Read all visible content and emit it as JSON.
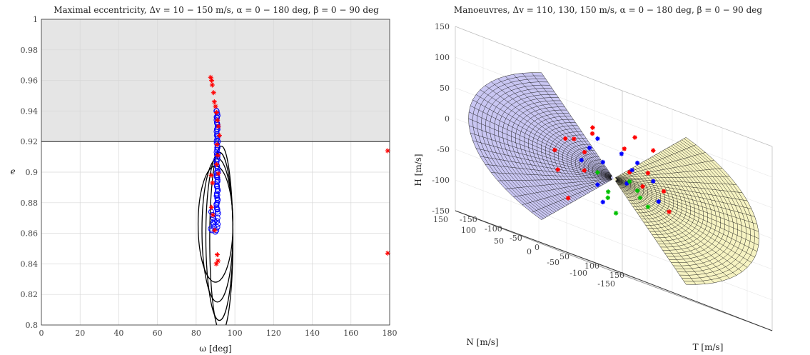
{
  "chart_data": [
    {
      "type": "scatter",
      "title": "Maximal eccentricity, Δv = 10 − 150 m/s, α = 0 − 180 deg, β = 0 − 90 deg",
      "xlabel": "ω [deg]",
      "ylabel": "e",
      "xlim": [
        0,
        180
      ],
      "ylim": [
        0.8,
        1.0
      ],
      "x_ticks": [
        "0",
        "20",
        "40",
        "60",
        "80",
        "100",
        "120",
        "140",
        "160",
        "180"
      ],
      "y_ticks": [
        "0.8",
        "0.82",
        "0.84",
        "0.86",
        "0.88",
        "0.9",
        "0.92",
        "0.94",
        "0.96",
        "0.98",
        "1"
      ],
      "grid": true,
      "shaded_region": {
        "y_from": 0.92,
        "y_to": 1.0,
        "color": "#e5e5e5"
      },
      "threshold_line": 0.92,
      "series": [
        {
          "marker": "asterisk",
          "color": "#ff0000",
          "x": [
            87.5,
            88.0,
            88.3,
            89.0,
            89.4,
            90.0,
            90.5,
            91.0,
            91.5,
            92.0,
            90.8,
            91.2,
            90.6,
            91.4,
            87.8,
            88.4,
            87.9,
            88.6,
            89.6,
            90.9,
            91.3,
            90.4,
            179.0,
            179.0
          ],
          "y": [
            0.962,
            0.96,
            0.957,
            0.952,
            0.946,
            0.943,
            0.939,
            0.934,
            0.93,
            0.924,
            0.918,
            0.911,
            0.905,
            0.899,
            0.898,
            0.893,
            0.877,
            0.872,
            0.862,
            0.846,
            0.842,
            0.84,
            0.914,
            0.847
          ]
        },
        {
          "marker": "circle",
          "color": "#0000ff",
          "x": [
            90.5,
            90.6,
            90.8,
            91.0,
            90.7,
            91.2,
            90.9,
            91.1,
            90.4,
            90.8,
            91.3,
            90.6,
            91.0,
            90.8,
            91.2,
            90.9,
            91.1,
            90.5,
            90.8,
            91.3,
            91.0,
            90.7,
            91.1,
            90.9,
            89.0,
            87.8,
            88.5,
            88.9,
            89.5,
            87.6,
            88.2,
            89.2,
            88.8,
            89.9,
            90.4
          ],
          "y": [
            0.94,
            0.936,
            0.932,
            0.928,
            0.924,
            0.92,
            0.916,
            0.912,
            0.908,
            0.904,
            0.9,
            0.897,
            0.894,
            0.891,
            0.888,
            0.885,
            0.882,
            0.879,
            0.876,
            0.873,
            0.87,
            0.868,
            0.866,
            0.864,
            0.866,
            0.874,
            0.872,
            0.87,
            0.868,
            0.863,
            0.862,
            0.864,
            0.867,
            0.861,
            0.862
          ]
        },
        {
          "type": "curves",
          "color": "#000000",
          "curves": [
            {
              "cx": 90,
              "cy": 0.866,
              "rx": 9,
              "ry": 0.038
            },
            {
              "cx": 91,
              "cy": 0.862,
              "rx": 8,
              "ry": 0.047
            },
            {
              "cx": 92,
              "cy": 0.858,
              "rx": 7,
              "ry": 0.055
            },
            {
              "cx": 93,
              "cy": 0.856,
              "rx": 6,
              "ry": 0.061
            }
          ]
        }
      ]
    },
    {
      "type": "surface3d",
      "title": "Manoeuvres, Δv = 110, 130, 150 m/s, α = 0 − 180 deg, β = 0 − 90 deg",
      "zlabel": "H [m/s]",
      "xlabel": "N [m/s]",
      "ylabel": "T [m/s]",
      "z_ticks": [
        "150",
        "100",
        "50",
        "0",
        "-50",
        "-100",
        "-150"
      ],
      "n_ticks": [
        "150",
        "100",
        "50",
        "0",
        "-50",
        "-100",
        "-150"
      ],
      "t_ticks": [
        "-150",
        "-100",
        "-50",
        "0",
        "50",
        "100",
        "150"
      ],
      "colors": {
        "left_surface": "#c9c6f2",
        "right_surface": "#f6f3c2",
        "mesh": "#1a1a1a"
      },
      "markers_left": [
        {
          "color": "#ff0000",
          "N": 20,
          "T": -20,
          "H": 70
        },
        {
          "color": "#ff0000",
          "N": 25,
          "T": -15,
          "H": 60
        },
        {
          "color": "#ff0000",
          "N": 40,
          "T": -35,
          "H": 40
        },
        {
          "color": "#ff0000",
          "N": 60,
          "T": -30,
          "H": 35
        },
        {
          "color": "#ff0000",
          "N": 30,
          "T": -25,
          "H": 25
        },
        {
          "color": "#ff0000",
          "N": 70,
          "T": -40,
          "H": 10
        },
        {
          "color": "#ff0000",
          "N": 35,
          "T": -20,
          "H": -5
        },
        {
          "color": "#ff0000",
          "N": 60,
          "T": -45,
          "H": -20
        },
        {
          "color": "#ff0000",
          "N": 55,
          "T": -30,
          "H": -60
        },
        {
          "color": "#0000ff",
          "N": 20,
          "T": -10,
          "H": 55
        },
        {
          "color": "#0000ff",
          "N": 30,
          "T": -15,
          "H": 35
        },
        {
          "color": "#0000ff",
          "N": 15,
          "T": -5,
          "H": 20
        },
        {
          "color": "#0000ff",
          "N": 40,
          "T": -20,
          "H": 10
        },
        {
          "color": "#0000ff",
          "N": 20,
          "T": -10,
          "H": -20
        },
        {
          "color": "#0000ff",
          "N": 15,
          "T": -5,
          "H": -45
        },
        {
          "color": "#00c000",
          "N": 20,
          "T": -10,
          "H": 0
        },
        {
          "color": "#00c000",
          "N": 10,
          "T": 0,
          "H": -25
        },
        {
          "color": "#00c000",
          "N": 15,
          "T": 5,
          "H": -35
        },
        {
          "color": "#00c000",
          "N": 5,
          "T": 10,
          "H": -55
        }
      ],
      "markers_right": [
        {
          "color": "#ff0000",
          "N": -20,
          "T": 20,
          "H": 80
        },
        {
          "color": "#ff0000",
          "N": -35,
          "T": 40,
          "H": 70
        },
        {
          "color": "#ff0000",
          "N": -10,
          "T": 10,
          "H": 55
        },
        {
          "color": "#ff0000",
          "N": -30,
          "T": 35,
          "H": 30
        },
        {
          "color": "#ff0000",
          "N": -15,
          "T": 15,
          "H": 20
        },
        {
          "color": "#ff0000",
          "N": -45,
          "T": 50,
          "H": 10
        },
        {
          "color": "#ff0000",
          "N": -25,
          "T": 30,
          "H": 5
        },
        {
          "color": "#ff0000",
          "N": -50,
          "T": 55,
          "H": -20
        },
        {
          "color": "#0000ff",
          "N": -5,
          "T": 10,
          "H": 45
        },
        {
          "color": "#0000ff",
          "N": -20,
          "T": 25,
          "H": 40
        },
        {
          "color": "#0000ff",
          "N": -15,
          "T": 20,
          "H": 25
        },
        {
          "color": "#0000ff",
          "N": -35,
          "T": 40,
          "H": 20
        },
        {
          "color": "#0000ff",
          "N": -10,
          "T": 15,
          "H": 0
        },
        {
          "color": "#0000ff",
          "N": -40,
          "T": 45,
          "H": -10
        },
        {
          "color": "#00c000",
          "N": -15,
          "T": 15,
          "H": 5
        },
        {
          "color": "#00c000",
          "N": -20,
          "T": 25,
          "H": -5
        },
        {
          "color": "#00c000",
          "N": -25,
          "T": 25,
          "H": -15
        },
        {
          "color": "#00c000",
          "N": -30,
          "T": 35,
          "H": -25
        }
      ]
    }
  ]
}
